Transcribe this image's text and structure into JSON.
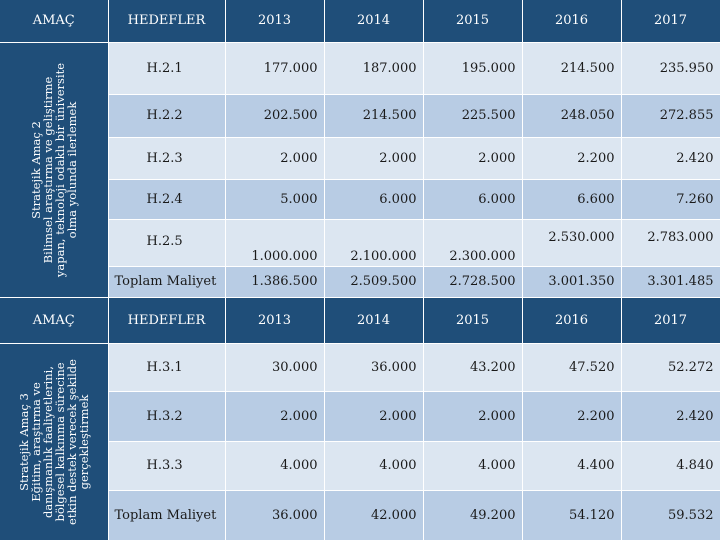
{
  "sections": [
    {
      "amac_label": "AMAÇ",
      "hedefler_label": "HEDEFLER",
      "side_text": "Stratejik Amaç 2\nBilimsel araştırma ve geliştirme\nyapan, teknoloji odaklı bir üniversite\nolma yolunda ilerlemek",
      "years": [
        "2013",
        "2014",
        "2015",
        "2016",
        "2017"
      ],
      "rows": [
        {
          "goal": "H.2.1",
          "values": [
            "177.000",
            "187.000",
            "195.000",
            "214.500",
            "235.950"
          ]
        },
        {
          "goal": "H.2.2",
          "values": [
            "202.500",
            "214.500",
            "225.500",
            "248.050",
            "272.855"
          ]
        },
        {
          "goal": "H.2.3",
          "values": [
            "2.000",
            "2.000",
            "2.000",
            "2.200",
            "2.420"
          ]
        },
        {
          "goal": "H.2.4",
          "values": [
            "5.000",
            "6.000",
            "6.000",
            "6.600",
            "7.260"
          ]
        },
        {
          "goal": "H.2.5",
          "values": [
            "1.000.000",
            "2.100.000",
            "2.300.000",
            "2.530.000",
            "2.783.000"
          ]
        }
      ],
      "total": {
        "label": "Toplam Maliyet",
        "values": [
          "1.386.500",
          "2.509.500",
          "2.728.500",
          "3.001.350",
          "3.301.485"
        ]
      }
    },
    {
      "amac_label": "AMAÇ",
      "hedefler_label": "HEDEFLER",
      "side_text": "Stratejik Amaç 3\nEğitim, araştırma ve\ndanışmanlık faaliyetlerini,\nbölgesel kalkınma sürecine\netkin destek verecek şekilde\ngerçekleştirmek",
      "years": [
        "2013",
        "2014",
        "2015",
        "2016",
        "2017"
      ],
      "rows": [
        {
          "goal": "H.3.1",
          "values": [
            "30.000",
            "36.000",
            "43.200",
            "47.520",
            "52.272"
          ]
        },
        {
          "goal": "H.3.2",
          "values": [
            "2.000",
            "2.000",
            "2.000",
            "2.200",
            "2.420"
          ]
        },
        {
          "goal": "H.3.3",
          "values": [
            "4.000",
            "4.000",
            "4.000",
            "4.400",
            "4.840"
          ]
        }
      ],
      "total": {
        "label": "Toplam Maliyet",
        "values": [
          "36.000",
          "42.000",
          "49.200",
          "54.120",
          "59.532"
        ]
      }
    }
  ],
  "colors": {
    "header_bg": "#1f4e79",
    "row_light": "#dce6f1",
    "row_dark": "#b8cce4"
  }
}
